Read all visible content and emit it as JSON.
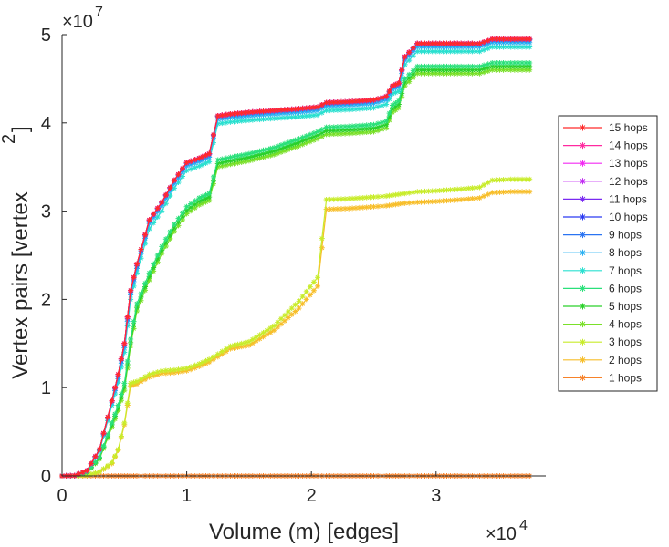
{
  "chart_data": {
    "type": "line",
    "title": "",
    "xlabel": "Volume (m) [edges]",
    "ylabel_main": "Vertex pairs [vertex",
    "ylabel_sup": "2",
    "ylabel_close": "]",
    "x_exponent_base": "×10",
    "x_exponent_power": "4",
    "y_exponent_base": "×10",
    "y_exponent_power": "7",
    "xlim": [
      0,
      38800
    ],
    "ylim": [
      0,
      50000000
    ],
    "x_ticks": [
      0,
      10000,
      20000,
      30000
    ],
    "x_tick_labels": [
      "0",
      "1",
      "2",
      "3"
    ],
    "y_ticks": [
      0,
      10000000,
      20000000,
      30000000,
      40000000,
      50000000
    ],
    "y_tick_labels": [
      "0",
      "1",
      "2",
      "3",
      "4",
      "5"
    ],
    "legend_position": "right",
    "x": [
      0,
      1000,
      2000,
      3000,
      4000,
      4500,
      5000,
      5500,
      6000,
      7000,
      8000,
      9000,
      10000,
      11000,
      11800,
      12500,
      13500,
      15000,
      17000,
      19000,
      20500,
      21200,
      23000,
      25000,
      26000,
      26500,
      27000,
      27500,
      28500,
      30000,
      32000,
      33500,
      34500,
      36000,
      37500
    ],
    "series": [
      {
        "name": "15 hops",
        "color": "#ff2a2a",
        "values": [
          0,
          40000,
          600000,
          3000000,
          8500000,
          11500000,
          15000000,
          21000000,
          24000000,
          29000000,
          31000000,
          33500000,
          35500000,
          36000000,
          36500000,
          40800000,
          41000000,
          41200000,
          41400000,
          41600000,
          41800000,
          42300000,
          42400000,
          42600000,
          43000000,
          44200000,
          44500000,
          47500000,
          49000000,
          49000000,
          49000000,
          49000000,
          49500000,
          49500000,
          49500000
        ]
      },
      {
        "name": "14 hops",
        "color": "#ff2aa0",
        "values": [
          0,
          40000,
          600000,
          3000000,
          8500000,
          11500000,
          15000000,
          21000000,
          24000000,
          29000000,
          31000000,
          33500000,
          35500000,
          36000000,
          36500000,
          40800000,
          41000000,
          41200000,
          41400000,
          41600000,
          41800000,
          42300000,
          42400000,
          42600000,
          43000000,
          44200000,
          44500000,
          47500000,
          49000000,
          49000000,
          49000000,
          49000000,
          49500000,
          49500000,
          49500000
        ]
      },
      {
        "name": "13 hops",
        "color": "#f22af2",
        "values": [
          0,
          40000,
          600000,
          3000000,
          8500000,
          11500000,
          15000000,
          21000000,
          24000000,
          29000000,
          31000000,
          33500000,
          35500000,
          36000000,
          36500000,
          40800000,
          41000000,
          41200000,
          41400000,
          41600000,
          41800000,
          42300000,
          42400000,
          42600000,
          43000000,
          44200000,
          44500000,
          47500000,
          49000000,
          49000000,
          49000000,
          49000000,
          49500000,
          49500000,
          49500000
        ]
      },
      {
        "name": "12 hops",
        "color": "#c02af2",
        "values": [
          0,
          40000,
          600000,
          3000000,
          8500000,
          11500000,
          15000000,
          21000000,
          24000000,
          29000000,
          31000000,
          33500000,
          35500000,
          36000000,
          36500000,
          40800000,
          41000000,
          41200000,
          41400000,
          41600000,
          41800000,
          42300000,
          42400000,
          42600000,
          43000000,
          44200000,
          44500000,
          47500000,
          49000000,
          49000000,
          49000000,
          49000000,
          49500000,
          49500000,
          49500000
        ]
      },
      {
        "name": "11 hops",
        "color": "#7a2af2",
        "values": [
          0,
          40000,
          600000,
          3000000,
          8500000,
          11500000,
          15000000,
          21000000,
          24000000,
          29000000,
          31000000,
          33500000,
          35500000,
          36000000,
          36500000,
          40800000,
          41000000,
          41200000,
          41400000,
          41600000,
          41800000,
          42300000,
          42400000,
          42600000,
          43000000,
          44200000,
          44500000,
          47500000,
          49000000,
          49000000,
          49000000,
          49000000,
          49500000,
          49500000,
          49500000
        ]
      },
      {
        "name": "10 hops",
        "color": "#2a3af2",
        "values": [
          0,
          40000,
          600000,
          3000000,
          8500000,
          11500000,
          15000000,
          21000000,
          24000000,
          29000000,
          31000000,
          33500000,
          35500000,
          36000000,
          36500000,
          40800000,
          41000000,
          41200000,
          41400000,
          41600000,
          41800000,
          42300000,
          42400000,
          42600000,
          43000000,
          44200000,
          44500000,
          47500000,
          49000000,
          49000000,
          49000000,
          49000000,
          49500000,
          49500000,
          49500000
        ]
      },
      {
        "name": "9 hops",
        "color": "#2a74f2",
        "values": [
          0,
          40000,
          600000,
          3000000,
          8500000,
          11300000,
          14800000,
          20800000,
          23800000,
          28900000,
          30900000,
          33400000,
          35400000,
          35900000,
          36400000,
          40700000,
          40900000,
          41100000,
          41300000,
          41500000,
          41700000,
          42200000,
          42300000,
          42500000,
          42900000,
          44100000,
          44400000,
          47400000,
          48900000,
          48900000,
          48900000,
          48900000,
          49400000,
          49400000,
          49400000
        ]
      },
      {
        "name": "8 hops",
        "color": "#2ab0f2",
        "values": [
          0,
          38000,
          580000,
          2900000,
          8300000,
          11000000,
          14500000,
          20500000,
          23500000,
          28600000,
          30600000,
          33100000,
          35100000,
          35600000,
          36100000,
          40400000,
          40600000,
          40800000,
          41000000,
          41200000,
          41400000,
          41900000,
          42000000,
          42200000,
          42600000,
          43800000,
          44100000,
          47100000,
          48600000,
          48600000,
          48600000,
          48600000,
          49100000,
          49100000,
          49100000
        ]
      },
      {
        "name": "7 hops",
        "color": "#2ae0d0",
        "values": [
          0,
          36000,
          560000,
          2800000,
          8000000,
          10600000,
          14000000,
          20000000,
          23000000,
          28000000,
          30000000,
          32600000,
          34600000,
          35100000,
          35600000,
          39900000,
          40100000,
          40300000,
          40500000,
          40700000,
          40900000,
          41400000,
          41500000,
          41700000,
          42100000,
          43300000,
          43600000,
          46600000,
          48100000,
          48100000,
          48100000,
          48100000,
          48600000,
          48600000,
          48600000
        ]
      },
      {
        "name": "6 hops",
        "color": "#2ae07a",
        "values": [
          0,
          30000,
          450000,
          2100000,
          6000000,
          8000000,
          10500000,
          15500000,
          19500000,
          23000000,
          26000000,
          28500000,
          30500000,
          31500000,
          32000000,
          35800000,
          36100000,
          36500000,
          37200000,
          38200000,
          39000000,
          39500000,
          39600000,
          39800000,
          40200000,
          42000000,
          42500000,
          45000000,
          46400000,
          46400000,
          46400000,
          46400000,
          46800000,
          46800000,
          46800000
        ]
      },
      {
        "name": "5 hops",
        "color": "#2ad02a",
        "values": [
          0,
          28000,
          420000,
          2000000,
          5800000,
          7700000,
          10100000,
          15100000,
          19100000,
          22600000,
          25600000,
          28100000,
          30100000,
          31100000,
          31600000,
          35400000,
          35700000,
          36100000,
          36800000,
          37800000,
          38600000,
          39100000,
          39200000,
          39400000,
          39800000,
          41600000,
          42100000,
          44600000,
          46000000,
          46000000,
          46000000,
          46000000,
          46400000,
          46400000,
          46400000
        ]
      },
      {
        "name": "4 hops",
        "color": "#7ae02a",
        "values": [
          0,
          26000,
          400000,
          1900000,
          5500000,
          7400000,
          9700000,
          14700000,
          18700000,
          22200000,
          25200000,
          27700000,
          29700000,
          30700000,
          31200000,
          35000000,
          35300000,
          35700000,
          36400000,
          37400000,
          38200000,
          38700000,
          38800000,
          39000000,
          39400000,
          41200000,
          41700000,
          44200000,
          45600000,
          45600000,
          45600000,
          45600000,
          46000000,
          46000000,
          46000000
        ]
      },
      {
        "name": "3 hops",
        "color": "#c8ec2a",
        "values": [
          0,
          6000,
          90000,
          450000,
          1500000,
          3000000,
          6000000,
          10500000,
          10700000,
          11500000,
          11900000,
          12000000,
          12200000,
          12700000,
          13200000,
          13800000,
          14700000,
          15200000,
          17000000,
          19800000,
          22500000,
          31300000,
          31400000,
          31600000,
          31700000,
          31800000,
          31900000,
          32000000,
          32200000,
          32300000,
          32500000,
          32700000,
          33500000,
          33600000,
          33600000
        ]
      },
      {
        "name": "2 hops",
        "color": "#f7be2a",
        "values": [
          0,
          6000,
          90000,
          420000,
          1400000,
          2900000,
          5800000,
          10200000,
          10400000,
          11200000,
          11600000,
          11700000,
          11900000,
          12400000,
          12900000,
          13500000,
          14400000,
          14800000,
          16500000,
          19000000,
          21500000,
          30200000,
          30300000,
          30500000,
          30600000,
          30700000,
          30800000,
          30900000,
          31000000,
          31100000,
          31300000,
          31500000,
          32100000,
          32200000,
          32200000
        ]
      },
      {
        "name": "1 hops",
        "color": "#f7822a",
        "values": [
          0,
          0,
          0,
          0,
          0,
          0,
          0,
          0,
          0,
          0,
          0,
          0,
          0,
          0,
          0,
          0,
          0,
          0,
          0,
          0,
          0,
          0,
          0,
          0,
          0,
          0,
          0,
          0,
          0,
          0,
          0,
          0,
          0,
          0,
          0
        ]
      }
    ]
  }
}
